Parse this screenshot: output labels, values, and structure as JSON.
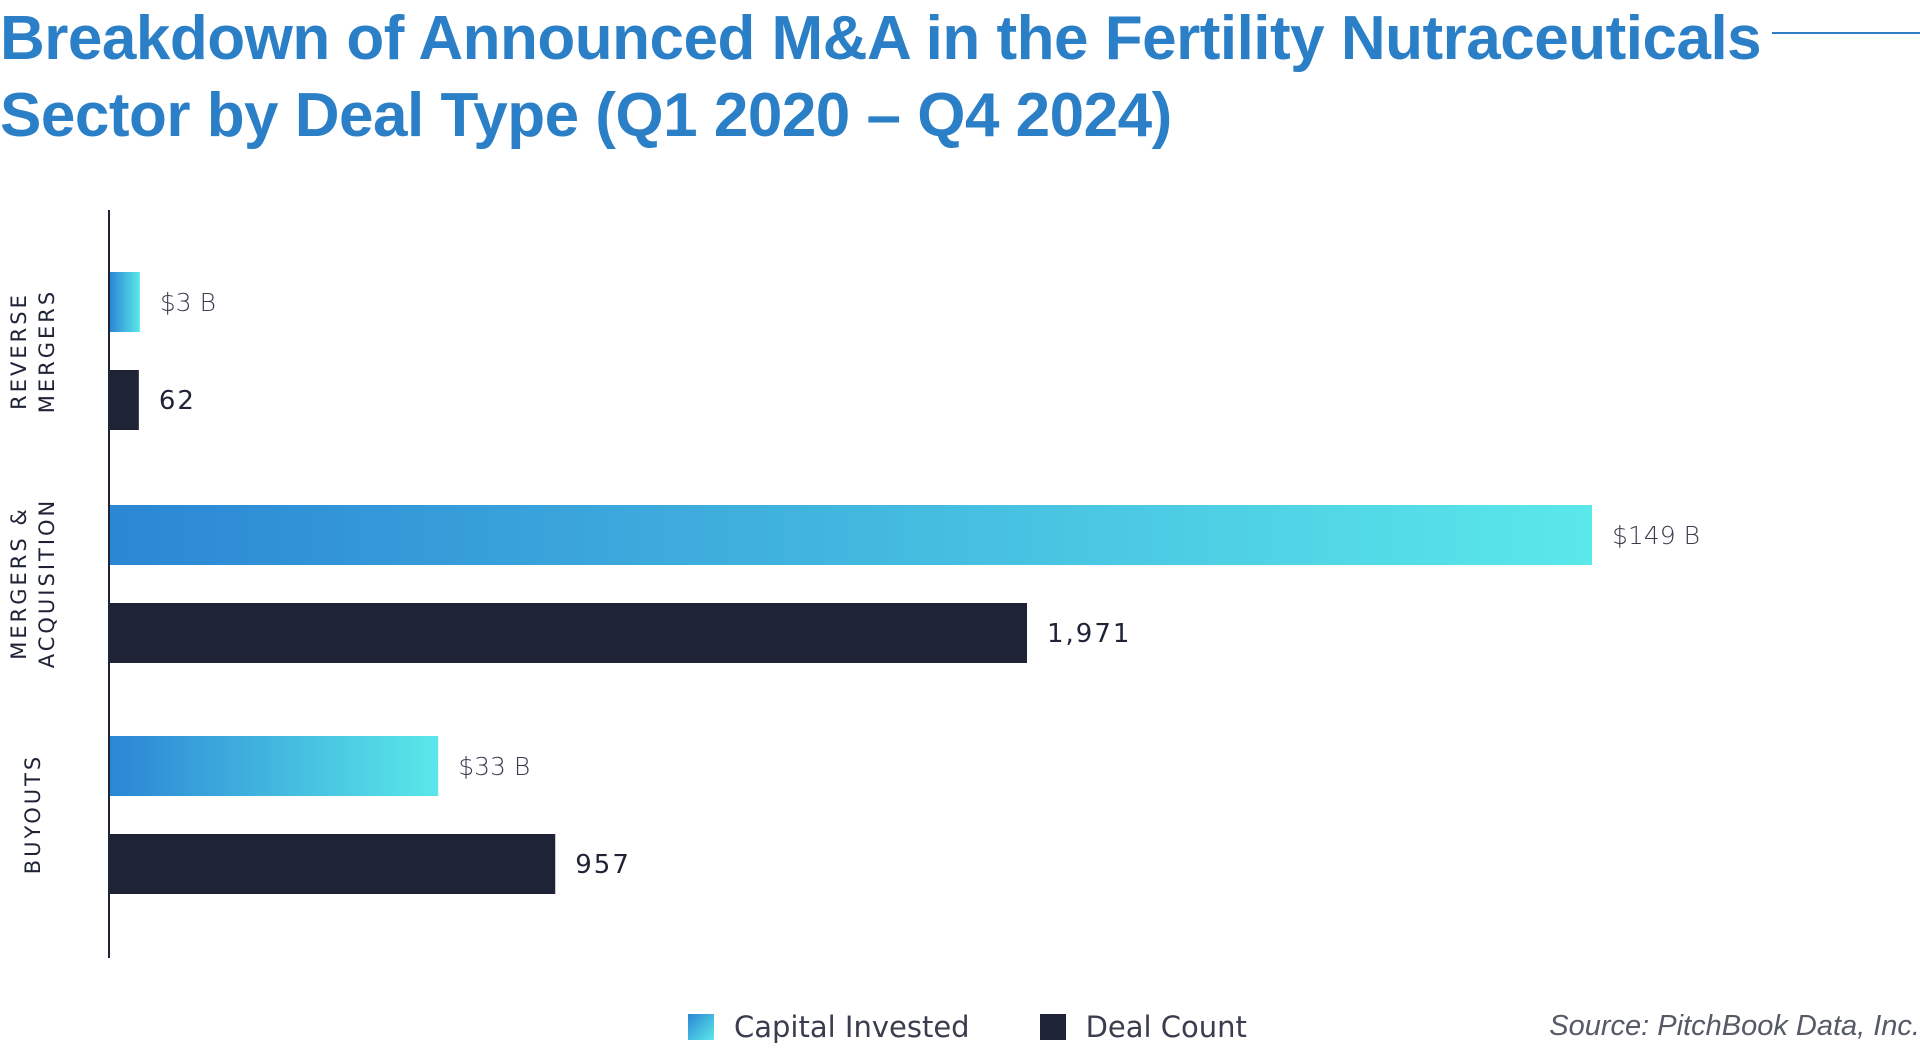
{
  "colors": {
    "title": "#2b7fc6",
    "capital_start": "#2b86d4",
    "capital_end": "#5ae8ea",
    "deal_count": "#1f2336"
  },
  "legend": {
    "capital_label": "Capital Invested",
    "count_label": "Deal Count"
  },
  "source": "Source: PitchBook Data, Inc.",
  "chart_data": {
    "type": "bar",
    "orientation": "horizontal",
    "title_lines": [
      "Breakdown of Announced M&A in the Fertility Nutraceuticals",
      "Sector by Deal Type (Q1 2020 – Q4 2024)"
    ],
    "categories": [
      [
        "REVERSE",
        "MERGERS"
      ],
      [
        "MERGERS &",
        "ACQUISITION"
      ],
      [
        "BUYOUTS"
      ]
    ],
    "series": [
      {
        "name": "Capital Invested",
        "values": [
          3,
          149,
          33
        ],
        "labels": [
          "$3 B",
          "$149 B",
          "$33 B"
        ]
      },
      {
        "name": "Deal Count",
        "values": [
          62,
          1971,
          957
        ],
        "labels": [
          "62",
          "1,971",
          "957"
        ]
      }
    ],
    "grid": false,
    "legend_position": "bottom"
  }
}
